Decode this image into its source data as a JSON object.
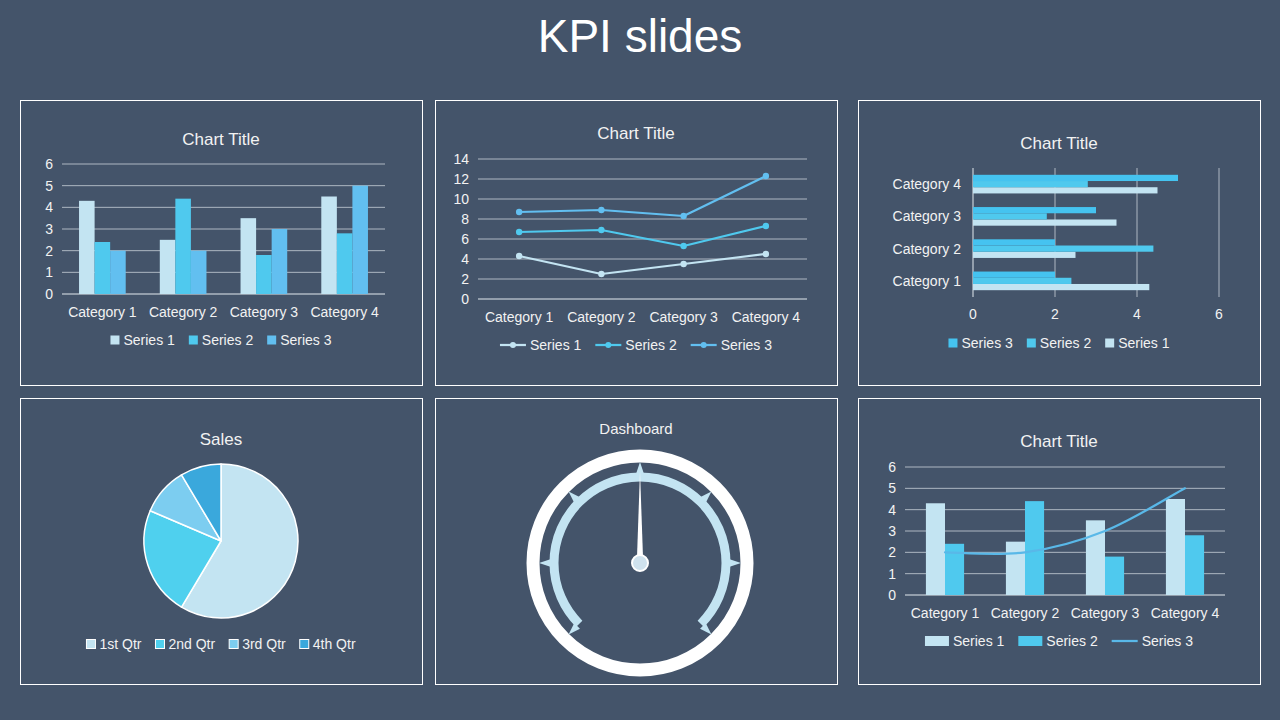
{
  "title": "KPI slides",
  "chart_data": [
    {
      "type": "bar",
      "title": "Chart Title",
      "categories": [
        "Category 1",
        "Category 2",
        "Category 3",
        "Category 4"
      ],
      "series": [
        {
          "name": "Series 1",
          "color": "#c3e4f2",
          "values": [
            4.3,
            2.5,
            3.5,
            4.5
          ]
        },
        {
          "name": "Series 2",
          "color": "#4fc9ee",
          "values": [
            2.4,
            4.4,
            1.8,
            2.8
          ]
        },
        {
          "name": "Series 3",
          "color": "#62bff0",
          "values": [
            2,
            2,
            3,
            5
          ]
        }
      ],
      "ylim": [
        0,
        6
      ],
      "yticks": [
        0,
        1,
        2,
        3,
        4,
        5,
        6
      ],
      "grid": true,
      "legend": "bottom"
    },
    {
      "type": "line",
      "title": "Chart Title",
      "stacked": true,
      "categories": [
        "Category 1",
        "Category 2",
        "Category 3",
        "Category 4"
      ],
      "series": [
        {
          "name": "Series 1",
          "color": "#c3e4f2",
          "marker": "circle",
          "values": [
            4.3,
            2.5,
            3.5,
            4.5
          ]
        },
        {
          "name": "Series 2",
          "color": "#4fc9ee",
          "marker": "circle",
          "values": [
            2.4,
            4.4,
            1.8,
            2.8
          ]
        },
        {
          "name": "Series 3",
          "color": "#62bff0",
          "marker": "circle",
          "values": [
            2,
            2,
            3,
            5
          ]
        }
      ],
      "ylim": [
        0,
        14
      ],
      "yticks": [
        0,
        2,
        4,
        6,
        8,
        10,
        12,
        14
      ],
      "grid": true,
      "legend": "bottom"
    },
    {
      "type": "bar",
      "title": "Chart Title",
      "orientation": "horizontal",
      "categories": [
        "Category 1",
        "Category 2",
        "Category 3",
        "Category 4"
      ],
      "series": [
        {
          "name": "Series 1",
          "color": "#c3e4f2",
          "values": [
            4.3,
            2.5,
            3.5,
            4.5
          ]
        },
        {
          "name": "Series 2",
          "color": "#4fc9ee",
          "values": [
            2.4,
            4.4,
            1.8,
            2.8
          ]
        },
        {
          "name": "Series 3",
          "color": "#45c3f0",
          "values": [
            2,
            2,
            3,
            5
          ]
        }
      ],
      "xlim": [
        0,
        6
      ],
      "xticks": [
        0,
        2,
        4,
        6
      ],
      "grid": true,
      "legend": "bottom"
    },
    {
      "type": "pie",
      "title": "Sales",
      "categories": [
        "1st Qtr",
        "2nd Qtr",
        "3rd Qtr",
        "4th Qtr"
      ],
      "values": [
        8.2,
        3.2,
        1.4,
        1.2
      ],
      "colors": [
        "#c3e4f2",
        "#4fd0ee",
        "#7ccdf0",
        "#3aa8dc"
      ],
      "legend": "bottom"
    },
    {
      "type": "gauge",
      "title": "Dashboard",
      "values": [
        3
      ],
      "ylim": [
        0,
        6
      ],
      "yticks": [
        0,
        1,
        2,
        3,
        4,
        5,
        6
      ],
      "tick_labels": false,
      "color": "#c3e4f2"
    },
    {
      "type": "bar",
      "title": "Chart Title",
      "categories": [
        "Category 1",
        "Category 2",
        "Category 3",
        "Category 4"
      ],
      "series": [
        {
          "name": "Series 1",
          "type": "bar",
          "color": "#c3e4f2",
          "values": [
            4.3,
            2.5,
            3.5,
            4.5
          ]
        },
        {
          "name": "Series 2",
          "type": "bar",
          "color": "#4fc9ee",
          "values": [
            2.4,
            4.4,
            1.8,
            2.8
          ]
        },
        {
          "name": "Series 3",
          "type": "line",
          "color": "#59b8e8",
          "line_style": "smooth",
          "marker": "none",
          "values": [
            2,
            2,
            3,
            5
          ]
        }
      ],
      "ylim": [
        0,
        6
      ],
      "yticks": [
        0,
        1,
        2,
        3,
        4,
        5,
        6
      ],
      "grid": true,
      "legend": "bottom"
    }
  ]
}
